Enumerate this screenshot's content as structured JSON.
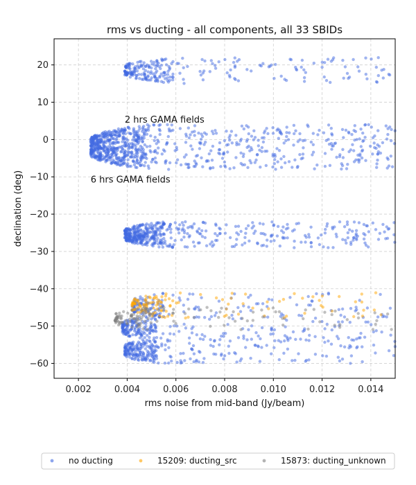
{
  "chart_data": {
    "type": "scatter",
    "title": "rms vs ducting - all components, all 33 SBIDs",
    "xlabel": "rms noise from mid-band (Jy/beam)",
    "ylabel": "declination (deg)",
    "xlim": [
      0.001,
      0.015
    ],
    "ylim": [
      -64,
      27
    ],
    "xticks": [
      0.002,
      0.004,
      0.006,
      0.008,
      0.01,
      0.012,
      0.014
    ],
    "xtick_labels": [
      "0.002",
      "0.004",
      "0.006",
      "0.008",
      "0.010",
      "0.012",
      "0.014"
    ],
    "yticks": [
      20,
      10,
      0,
      -10,
      -20,
      -30,
      -40,
      -50,
      -60
    ],
    "ytick_labels": [
      "20",
      "10",
      "0",
      "−10",
      "−20",
      "−30",
      "−40",
      "−50",
      "−60"
    ],
    "grid": true,
    "legend_position": "bottom",
    "annotations": [
      {
        "text": "2 hrs GAMA fields",
        "x": 0.0039,
        "y": 4.5
      },
      {
        "text": "6 hrs GAMA fields",
        "x": 0.0025,
        "y": -11.5
      }
    ],
    "series": [
      {
        "name": "no ducting",
        "color": "#4169e1",
        "marker": "circle"
      },
      {
        "name": "15209: ducting_src",
        "color": "#ffa500",
        "marker": "circle"
      },
      {
        "name": "15873: ducting_unknown",
        "color": "#808080",
        "marker": "circle"
      }
    ],
    "bands": [
      {
        "series": 0,
        "dec_min": 15,
        "dec_max": 22,
        "rms_min": 0.0039,
        "rms_dense_max": 0.006,
        "count": 260
      },
      {
        "series": 0,
        "dec_min": -8,
        "dec_max": 4,
        "rms_min": 0.0025,
        "rms_dense_max": 0.0048,
        "count": 900
      },
      {
        "series": 0,
        "dec_min": -29,
        "dec_max": -22,
        "rms_min": 0.0039,
        "rms_dense_max": 0.0055,
        "count": 520
      },
      {
        "series": 0,
        "dec_min": -48,
        "dec_max": -41,
        "rms_min": 0.0042,
        "rms_dense_max": 0.0055,
        "count": 160
      },
      {
        "series": 0,
        "dec_min": -54,
        "dec_max": -47,
        "rms_min": 0.0038,
        "rms_dense_max": 0.0052,
        "count": 240
      },
      {
        "series": 0,
        "dec_min": -60,
        "dec_max": -53,
        "rms_min": 0.0039,
        "rms_dense_max": 0.0053,
        "count": 300
      },
      {
        "series": 1,
        "dec_min": -48,
        "dec_max": -41,
        "rms_min": 0.0042,
        "rms_dense_max": 0.0058,
        "count": 130
      },
      {
        "series": 2,
        "dec_min": -51,
        "dec_max": -45,
        "rms_min": 0.0035,
        "rms_dense_max": 0.005,
        "count": 140
      }
    ]
  }
}
